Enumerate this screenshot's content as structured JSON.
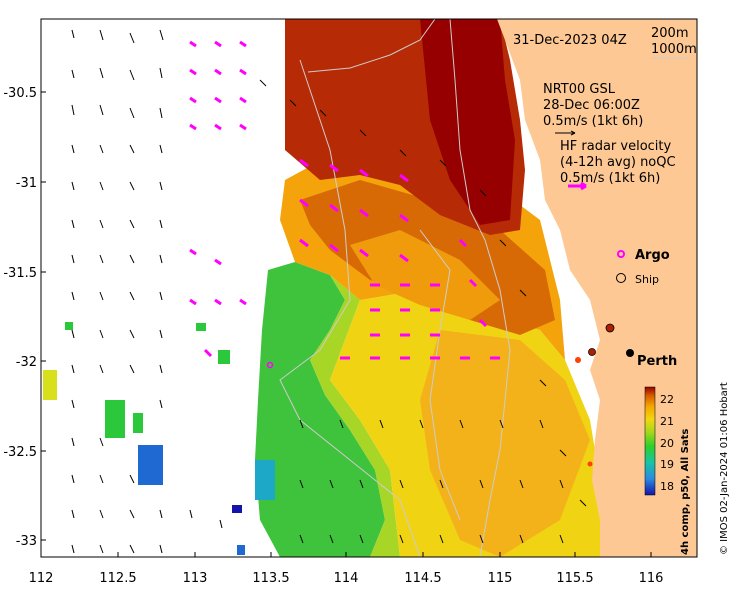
{
  "map": {
    "title_date": "31-Dec-2023 04Z",
    "contour_200": "200m",
    "contour_1000": "1000m",
    "model_label": "NRT00 GSL",
    "model_date": "28-Dec 06:00Z",
    "model_scale": "0.5m/s (1kt 6h)",
    "hf_label_1": "HF radar velocity",
    "hf_label_2": "(4-12h avg) noQC",
    "hf_scale": "0.5m/s (1kt 6h)",
    "argo_label": "Argo",
    "ship_label": "Ship",
    "city_label": "Perth",
    "credit": "© IMOS 02-Jan-2024 01:06 Hobart",
    "colorbar_title": "4h comp, p50, All Sats",
    "colorbar_ticks": [
      "22",
      "21",
      "20",
      "19",
      "18"
    ],
    "x_ticks": [
      "112",
      "112.5",
      "113",
      "113.5",
      "114",
      "114.5",
      "115",
      "115.5",
      "116"
    ],
    "y_ticks": [
      "-30.5",
      "-31",
      "-31.5",
      "-32",
      "-32.5",
      "-33"
    ],
    "colors": {
      "land": "#fdc894",
      "radar_arrow": "#ff00ff",
      "argo": "#ff00ff",
      "model_arrow": "#000000"
    }
  },
  "chart_data": {
    "type": "heatmap",
    "variable": "sea surface temperature",
    "units": "degC",
    "xlim": [
      112,
      116.3
    ],
    "ylim": [
      -33.1,
      -30.1
    ],
    "color_range": [
      17.5,
      22.5
    ]
  }
}
